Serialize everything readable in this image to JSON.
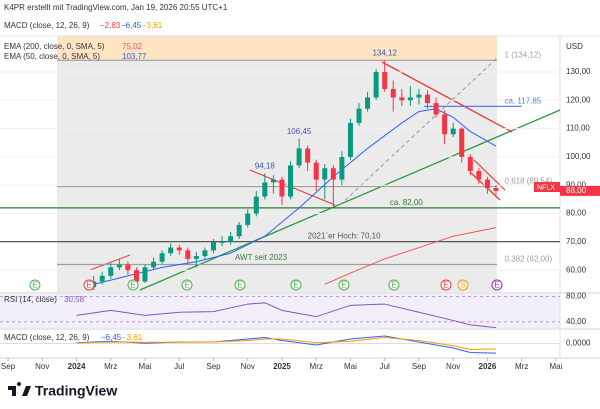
{
  "chart_data": [
    {
      "type": "candlestick",
      "title": "K4PR erstellt mit TradingView.com, Jan 19, 2026 20:55 UTC+1",
      "currency": "USD",
      "up_color": "#089981",
      "down_color": "#f23645",
      "x": [
        1.0,
        1.5,
        2.0,
        2.5,
        3.0,
        3.5,
        4.0,
        4.5,
        5.0,
        5.5,
        6.0,
        6.5,
        7.0,
        7.5,
        8.0,
        8.5,
        9.0,
        9.5,
        10.0,
        10.5,
        11.0,
        11.5,
        12.0,
        12.5,
        13.0,
        13.5,
        14.0,
        14.5,
        15.0,
        15.5,
        16.0,
        16.5,
        17.0,
        17.5,
        18.0,
        18.5,
        19.0,
        19.5,
        20.0,
        20.5,
        21.0,
        21.5,
        22.0,
        22.5,
        23.0,
        23.5,
        24.0,
        24.5
      ],
      "open": [
        54,
        56,
        58,
        61,
        62,
        60,
        56,
        61,
        63,
        66,
        68,
        67,
        64,
        65,
        67,
        70,
        70,
        72,
        76,
        80,
        86,
        91,
        92,
        86,
        97,
        103,
        98,
        92,
        96,
        92,
        100,
        112,
        117,
        121,
        130,
        124,
        121,
        120,
        121,
        122,
        119,
        115,
        108,
        110,
        100,
        95,
        92,
        89
      ],
      "high": [
        58,
        59.5,
        62.5,
        64,
        63,
        61,
        62,
        64.5,
        67,
        69.5,
        69,
        68,
        66.5,
        68,
        71,
        72,
        73.5,
        77,
        81.5,
        88,
        94.18,
        93.5,
        93,
        98.5,
        106.45,
        104,
        99,
        97.5,
        97,
        102,
        113.5,
        119,
        123,
        131,
        134.12,
        127,
        124,
        125,
        124,
        123.5,
        121,
        116.5,
        112,
        110.5,
        101,
        96,
        93,
        90
      ],
      "low": [
        53,
        55,
        57,
        60,
        58.5,
        55,
        55.5,
        60,
        62,
        65,
        65.5,
        62,
        61,
        64,
        66,
        68.5,
        69,
        71,
        75,
        79,
        85,
        87,
        83,
        85,
        96,
        95,
        88,
        85,
        82.5,
        90,
        99,
        111,
        116,
        120,
        123,
        116,
        118,
        118,
        118.5,
        117,
        114,
        104.5,
        107,
        98,
        93.5,
        90.5,
        87,
        86.5
      ],
      "close": [
        56,
        58,
        61,
        62,
        60,
        56,
        61,
        63,
        66,
        68,
        67,
        64,
        65,
        67,
        70,
        70,
        72,
        76,
        80,
        86,
        91,
        92,
        86,
        97,
        103,
        98,
        92,
        96,
        92,
        100,
        112,
        117,
        121,
        130,
        124,
        121,
        120,
        121,
        122,
        119,
        115,
        108,
        110,
        100,
        95,
        92,
        89,
        88
      ],
      "xlim": [
        -4.47,
        28.24
      ],
      "ylim": [
        52.3,
        142.7
      ],
      "yticks": [
        {
          "value": 60,
          "label": "60,00"
        },
        {
          "value": 70,
          "label": "70,00"
        },
        {
          "value": 80,
          "label": "80,00"
        },
        {
          "value": 90,
          "label": "90,00"
        },
        {
          "value": 100,
          "label": "100,00"
        },
        {
          "value": 110,
          "label": "110,00"
        },
        {
          "value": 120,
          "label": "120,00"
        },
        {
          "value": 130,
          "label": "130,00"
        }
      ],
      "xticks": [
        {
          "value": -4,
          "label": "Sep"
        },
        {
          "value": -2,
          "label": "Nov"
        },
        {
          "value": 0,
          "label": "2024"
        },
        {
          "value": 2,
          "label": "Mrz"
        },
        {
          "value": 4,
          "label": "Mai"
        },
        {
          "value": 6,
          "label": "Jul"
        },
        {
          "value": 8,
          "label": "Sep"
        },
        {
          "value": 10,
          "label": "Nov"
        },
        {
          "value": 12,
          "label": "2025"
        },
        {
          "value": 14,
          "label": "Mrz"
        },
        {
          "value": 16,
          "label": "Mai"
        },
        {
          "value": 18,
          "label": "Jul"
        },
        {
          "value": 20,
          "label": "Sep"
        },
        {
          "value": 22,
          "label": "Nov"
        },
        {
          "value": 24,
          "label": "2026"
        },
        {
          "value": 26,
          "label": "Mrz"
        },
        {
          "value": 28,
          "label": "Mai"
        }
      ],
      "series": [
        {
          "name": "EMA (200, close, 0, SMA, 5)",
          "color": "#e8585a",
          "last": {
            "value": 75.02,
            "label": "75,02"
          },
          "x": [
            14.5,
            16,
            18,
            20,
            22,
            24.5
          ],
          "values": [
            55,
            59,
            64,
            68,
            72,
            75.02
          ]
        },
        {
          "name": "EMA (50, close, 0, SMA, 5)",
          "color": "#2962ff",
          "last": {
            "value": 103.77,
            "label": "103,77"
          },
          "x": [
            1,
            3,
            5,
            7,
            9,
            11,
            13,
            15,
            17,
            19,
            20,
            21,
            22,
            23,
            24.5
          ],
          "values": [
            55,
            58,
            61,
            63,
            66,
            72,
            82,
            93,
            103,
            112,
            116,
            117,
            114,
            109,
            103.77
          ]
        }
      ],
      "levels": [
        {
          "label": "1 (134,12)",
          "value": 134.12,
          "color": "#9e9e9e",
          "x": [
            -1.14,
            24.56
          ],
          "label_x": 25.0
        },
        {
          "label": "0,618 (89,54)",
          "value": 89.54,
          "color": "#9e9e9e",
          "x": [
            -1.14,
            24.56
          ],
          "label_x": 25.0
        },
        {
          "label": "0,382 (62,00)",
          "value": 62,
          "color": "#9e9e9e",
          "x": [
            -1.14,
            24.56
          ],
          "label_x": 25.0
        },
        {
          "label": "ca. 82,00",
          "value": 82,
          "color": "#2e7d32",
          "label_x": 18.3
        },
        {
          "label": "2021`er Hoch: 70,10",
          "value": 70.1,
          "color": "#555555",
          "label_x": 13.5
        },
        {
          "label": "ca. 117,85",
          "value": 117.85,
          "color": "#5c7cfa",
          "x": [
            20.3,
            26.0
          ],
          "label_x": 25.0
        }
      ],
      "peaks": [
        {
          "label": "134,12",
          "value": 134.12,
          "x": 18.0
        },
        {
          "label": "106,45",
          "value": 106.45,
          "x": 13.0
        },
        {
          "label": "94,18",
          "value": 94.18,
          "x": 11.0
        }
      ],
      "last_price": {
        "value": 88,
        "label": "88,00"
      },
      "events": [
        {
          "label": "E",
          "x": -2.43,
          "color": "#4caf50"
        },
        {
          "label": "E",
          "x": 0.73,
          "color": "#f23645"
        },
        {
          "label": "E",
          "x": 3.3,
          "color": "#4caf50"
        },
        {
          "label": "E",
          "x": 6.45,
          "color": "#4caf50"
        },
        {
          "label": "E",
          "x": 9.55,
          "color": "#4caf50"
        },
        {
          "label": "E",
          "x": 12.82,
          "color": "#4caf50"
        },
        {
          "label": "E",
          "x": 15.62,
          "color": "#4caf50"
        },
        {
          "label": "E",
          "x": 18.54,
          "color": "#4caf50"
        },
        {
          "label": "E",
          "x": 21.58,
          "color": "#f23645"
        },
        {
          "label": "S",
          "x": 22.57,
          "color": "#ff9800"
        },
        {
          "label": "E",
          "x": 24.56,
          "color": "#9c27b0"
        }
      ]
    },
    {
      "type": "line",
      "name": "RSI (14, close)",
      "color": "#7e57c2",
      "last": {
        "value": 30.58,
        "label": "30,58"
      },
      "x": [
        0,
        2,
        4,
        6,
        8,
        10,
        11,
        12,
        14,
        16,
        18,
        20,
        22,
        23,
        24.5
      ],
      "values": [
        50,
        58,
        50,
        55,
        56,
        68,
        70,
        58,
        48,
        66,
        68,
        55,
        42,
        35,
        30.58
      ],
      "ylim": [
        30,
        84
      ],
      "yticks": [
        {
          "value": 80,
          "label": "80,00"
        },
        {
          "value": 40,
          "label": "40,00"
        }
      ]
    },
    {
      "type": "line",
      "name": "MACD (close, 12, 26, 9)",
      "readings": [
        {
          "value": -2.83,
          "label": "−2,83",
          "color": "#f23645"
        },
        {
          "value": -6.45,
          "label": "−6,45",
          "color": "#2962ff"
        },
        {
          "value": -3.61,
          "label": "−3,61",
          "color": "#ff9800"
        }
      ],
      "x": [
        0,
        2,
        4,
        6,
        8,
        10,
        11,
        12,
        14,
        16,
        18,
        20,
        22,
        23,
        24.5
      ],
      "series": [
        {
          "color": "#2962ff",
          "values": [
            0.5,
            1.5,
            0.2,
            1,
            1,
            3,
            4,
            2,
            -1,
            3,
            5,
            1,
            -3,
            -6,
            -6.45
          ]
        },
        {
          "color": "#ff9800",
          "values": [
            0.3,
            1,
            0.8,
            0.8,
            1,
            2,
            3,
            3,
            0.5,
            1.5,
            4,
            2,
            -1.5,
            -4,
            -3.61
          ]
        }
      ],
      "ylim": [
        -9,
        9
      ],
      "yticks": [
        {
          "value": 0,
          "label": "0,0000"
        }
      ]
    }
  ]
}
